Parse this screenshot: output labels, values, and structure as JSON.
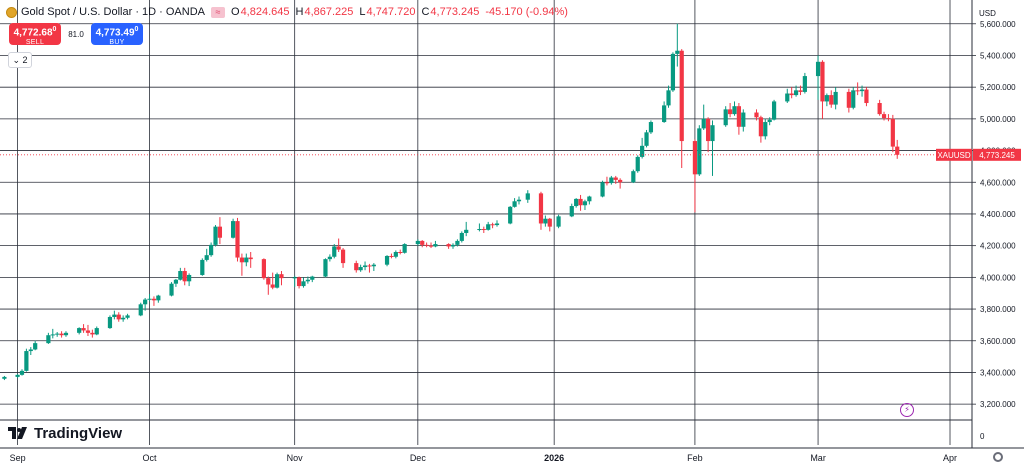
{
  "header": {
    "symbol_title": "Gold Spot / U.S. Dollar · 1D · OANDA",
    "open_label": "O",
    "open": "4,824.645",
    "high_label": "H",
    "high": "4,867.225",
    "low_label": "L",
    "low": "4,747.720",
    "close_label": "C",
    "close": "4,773.245",
    "change": "-45.170 (-0.94%)",
    "flag_icon": "market-closed-icon"
  },
  "trade": {
    "sell_price": "4,772.68",
    "sell_sup": "0",
    "sell_label": "SELL",
    "spread": "81.0",
    "buy_price": "4,773.49",
    "buy_sup": "0",
    "buy_label": "BUY"
  },
  "indicator_toggle": "2",
  "brand": "TradingView",
  "colors": {
    "up": "#089981",
    "down": "#f23645",
    "accent": "#2962ff",
    "event": "#9c27b0"
  },
  "chart_data": {
    "type": "candlestick",
    "symbol": "XAUUSD",
    "last_price": "4,773.245",
    "currency_label": "USD",
    "y_ticks": [
      5600,
      5400,
      5200,
      5000,
      4800,
      4600,
      4400,
      4200,
      4000,
      3800,
      3600,
      3400,
      3200
    ],
    "y_tick_labels": [
      "5,600.000",
      "5,400.000",
      "5,200.000",
      "5,000.000",
      "4,800.000",
      "4,600.000",
      "4,400.000",
      "4,200.000",
      "4,000.000",
      "3,800.000",
      "3,600.000",
      "3,400.000",
      "3,200.000"
    ],
    "ylim": [
      3100,
      5750
    ],
    "volume_axis_label": "0",
    "x_labels": [
      {
        "label": "Sep",
        "date": "2025-09-01"
      },
      {
        "label": "Oct",
        "date": "2025-10-01"
      },
      {
        "label": "Nov",
        "date": "2025-11-03"
      },
      {
        "label": "Dec",
        "date": "2025-12-01"
      },
      {
        "label": "2026",
        "date": "2026-01-01"
      },
      {
        "label": "Feb",
        "date": "2026-02-02"
      },
      {
        "label": "Mar",
        "date": "2026-03-02"
      },
      {
        "label": "Apr",
        "date": "2026-04-01"
      }
    ],
    "xlim": [
      "2025-08-28",
      "2026-04-06"
    ],
    "candles": [
      {
        "date": "2025-08-29",
        "o": 3360,
        "h": 3378,
        "l": 3352,
        "c": 3372
      },
      {
        "date": "2025-09-01",
        "o": 3372,
        "h": 3390,
        "l": 3365,
        "c": 3385
      },
      {
        "date": "2025-09-02",
        "o": 3385,
        "h": 3420,
        "l": 3380,
        "c": 3410
      },
      {
        "date": "2025-09-03",
        "o": 3410,
        "h": 3550,
        "l": 3405,
        "c": 3535
      },
      {
        "date": "2025-09-04",
        "o": 3535,
        "h": 3560,
        "l": 3510,
        "c": 3545
      },
      {
        "date": "2025-09-05",
        "o": 3545,
        "h": 3600,
        "l": 3540,
        "c": 3585
      },
      {
        "date": "2025-09-08",
        "o": 3585,
        "h": 3650,
        "l": 3580,
        "c": 3635
      },
      {
        "date": "2025-09-09",
        "o": 3635,
        "h": 3675,
        "l": 3615,
        "c": 3640
      },
      {
        "date": "2025-09-10",
        "o": 3640,
        "h": 3655,
        "l": 3625,
        "c": 3645
      },
      {
        "date": "2025-09-11",
        "o": 3645,
        "h": 3660,
        "l": 3620,
        "c": 3635
      },
      {
        "date": "2025-09-12",
        "o": 3635,
        "h": 3660,
        "l": 3625,
        "c": 3650
      },
      {
        "date": "2025-09-15",
        "o": 3650,
        "h": 3685,
        "l": 3640,
        "c": 3680
      },
      {
        "date": "2025-09-16",
        "o": 3680,
        "h": 3705,
        "l": 3650,
        "c": 3665
      },
      {
        "date": "2025-09-17",
        "o": 3665,
        "h": 3700,
        "l": 3630,
        "c": 3650
      },
      {
        "date": "2025-09-18",
        "o": 3650,
        "h": 3670,
        "l": 3620,
        "c": 3640
      },
      {
        "date": "2025-09-19",
        "o": 3640,
        "h": 3690,
        "l": 3635,
        "c": 3680
      },
      {
        "date": "2025-09-22",
        "o": 3680,
        "h": 3760,
        "l": 3675,
        "c": 3750
      },
      {
        "date": "2025-09-23",
        "o": 3750,
        "h": 3790,
        "l": 3735,
        "c": 3765
      },
      {
        "date": "2025-09-24",
        "o": 3765,
        "h": 3780,
        "l": 3720,
        "c": 3735
      },
      {
        "date": "2025-09-25",
        "o": 3735,
        "h": 3760,
        "l": 3720,
        "c": 3745
      },
      {
        "date": "2025-09-26",
        "o": 3745,
        "h": 3770,
        "l": 3735,
        "c": 3760
      },
      {
        "date": "2025-09-29",
        "o": 3760,
        "h": 3840,
        "l": 3755,
        "c": 3830
      },
      {
        "date": "2025-09-30",
        "o": 3830,
        "h": 3870,
        "l": 3790,
        "c": 3860
      },
      {
        "date": "2025-10-01",
        "o": 3860,
        "h": 3895,
        "l": 3850,
        "c": 3865
      },
      {
        "date": "2025-10-02",
        "o": 3865,
        "h": 3880,
        "l": 3820,
        "c": 3855
      },
      {
        "date": "2025-10-03",
        "o": 3855,
        "h": 3890,
        "l": 3840,
        "c": 3885
      },
      {
        "date": "2025-10-06",
        "o": 3885,
        "h": 3970,
        "l": 3880,
        "c": 3960
      },
      {
        "date": "2025-10-07",
        "o": 3960,
        "h": 3990,
        "l": 3940,
        "c": 3985
      },
      {
        "date": "2025-10-08",
        "o": 3985,
        "h": 4060,
        "l": 3980,
        "c": 4040
      },
      {
        "date": "2025-10-09",
        "o": 4040,
        "h": 4060,
        "l": 3950,
        "c": 3975
      },
      {
        "date": "2025-10-10",
        "o": 3975,
        "h": 4025,
        "l": 3945,
        "c": 4015
      },
      {
        "date": "2025-10-13",
        "o": 4015,
        "h": 4120,
        "l": 4010,
        "c": 4110
      },
      {
        "date": "2025-10-14",
        "o": 4110,
        "h": 4180,
        "l": 4100,
        "c": 4140
      },
      {
        "date": "2025-10-15",
        "o": 4140,
        "h": 4220,
        "l": 4130,
        "c": 4205
      },
      {
        "date": "2025-10-16",
        "o": 4205,
        "h": 4330,
        "l": 4195,
        "c": 4320
      },
      {
        "date": "2025-10-17",
        "o": 4320,
        "h": 4380,
        "l": 4210,
        "c": 4250
      },
      {
        "date": "2025-10-20",
        "o": 4250,
        "h": 4370,
        "l": 4245,
        "c": 4355
      },
      {
        "date": "2025-10-21",
        "o": 4355,
        "h": 4375,
        "l": 4100,
        "c": 4125
      },
      {
        "date": "2025-10-22",
        "o": 4125,
        "h": 4150,
        "l": 4010,
        "c": 4095
      },
      {
        "date": "2025-10-23",
        "o": 4095,
        "h": 4150,
        "l": 4070,
        "c": 4125
      },
      {
        "date": "2025-10-24",
        "o": 4125,
        "h": 4160,
        "l": 4060,
        "c": 4115
      },
      {
        "date": "2025-10-27",
        "o": 4115,
        "h": 4120,
        "l": 3985,
        "c": 3995
      },
      {
        "date": "2025-10-28",
        "o": 3995,
        "h": 4005,
        "l": 3890,
        "c": 3955
      },
      {
        "date": "2025-10-29",
        "o": 3955,
        "h": 4030,
        "l": 3925,
        "c": 3935
      },
      {
        "date": "2025-10-30",
        "o": 3935,
        "h": 4030,
        "l": 3930,
        "c": 4020
      },
      {
        "date": "2025-10-31",
        "o": 4020,
        "h": 4040,
        "l": 3950,
        "c": 3995
      },
      {
        "date": "2025-11-03",
        "o": 3995,
        "h": 4010,
        "l": 3940,
        "c": 4000
      },
      {
        "date": "2025-11-04",
        "o": 4000,
        "h": 4005,
        "l": 3930,
        "c": 3945
      },
      {
        "date": "2025-11-05",
        "o": 3945,
        "h": 4000,
        "l": 3935,
        "c": 3975
      },
      {
        "date": "2025-11-06",
        "o": 3975,
        "h": 4005,
        "l": 3960,
        "c": 3985
      },
      {
        "date": "2025-11-07",
        "o": 3985,
        "h": 4010,
        "l": 3970,
        "c": 4005
      },
      {
        "date": "2025-11-10",
        "o": 4005,
        "h": 4120,
        "l": 4000,
        "c": 4115
      },
      {
        "date": "2025-11-11",
        "o": 4115,
        "h": 4145,
        "l": 4100,
        "c": 4130
      },
      {
        "date": "2025-11-12",
        "o": 4130,
        "h": 4210,
        "l": 4120,
        "c": 4195
      },
      {
        "date": "2025-11-13",
        "o": 4195,
        "h": 4245,
        "l": 4160,
        "c": 4175
      },
      {
        "date": "2025-11-14",
        "o": 4175,
        "h": 4185,
        "l": 4060,
        "c": 4090
      },
      {
        "date": "2025-11-17",
        "o": 4090,
        "h": 4105,
        "l": 4030,
        "c": 4045
      },
      {
        "date": "2025-11-18",
        "o": 4045,
        "h": 4080,
        "l": 4035,
        "c": 4065
      },
      {
        "date": "2025-11-19",
        "o": 4065,
        "h": 4100,
        "l": 4045,
        "c": 4075
      },
      {
        "date": "2025-11-20",
        "o": 4075,
        "h": 4085,
        "l": 4030,
        "c": 4070
      },
      {
        "date": "2025-11-21",
        "o": 4070,
        "h": 4090,
        "l": 4040,
        "c": 4080
      },
      {
        "date": "2025-11-24",
        "o": 4080,
        "h": 4140,
        "l": 4070,
        "c": 4135
      },
      {
        "date": "2025-11-25",
        "o": 4135,
        "h": 4150,
        "l": 4120,
        "c": 4130
      },
      {
        "date": "2025-11-26",
        "o": 4130,
        "h": 4170,
        "l": 4120,
        "c": 4160
      },
      {
        "date": "2025-11-27",
        "o": 4160,
        "h": 4175,
        "l": 4145,
        "c": 4155
      },
      {
        "date": "2025-11-28",
        "o": 4155,
        "h": 4215,
        "l": 4150,
        "c": 4210
      },
      {
        "date": "2025-12-01",
        "o": 4210,
        "h": 4240,
        "l": 4200,
        "c": 4230
      },
      {
        "date": "2025-12-02",
        "o": 4230,
        "h": 4235,
        "l": 4190,
        "c": 4205
      },
      {
        "date": "2025-12-03",
        "o": 4205,
        "h": 4220,
        "l": 4190,
        "c": 4200
      },
      {
        "date": "2025-12-04",
        "o": 4200,
        "h": 4220,
        "l": 4185,
        "c": 4195
      },
      {
        "date": "2025-12-05",
        "o": 4195,
        "h": 4230,
        "l": 4190,
        "c": 4210
      },
      {
        "date": "2025-12-08",
        "o": 4210,
        "h": 4215,
        "l": 4180,
        "c": 4195
      },
      {
        "date": "2025-12-09",
        "o": 4195,
        "h": 4215,
        "l": 4180,
        "c": 4205
      },
      {
        "date": "2025-12-10",
        "o": 4205,
        "h": 4240,
        "l": 4195,
        "c": 4230
      },
      {
        "date": "2025-12-11",
        "o": 4230,
        "h": 4290,
        "l": 4220,
        "c": 4280
      },
      {
        "date": "2025-12-12",
        "o": 4280,
        "h": 4350,
        "l": 4260,
        "c": 4300
      },
      {
        "date": "2025-12-15",
        "o": 4300,
        "h": 4340,
        "l": 4290,
        "c": 4305
      },
      {
        "date": "2025-12-16",
        "o": 4305,
        "h": 4320,
        "l": 4280,
        "c": 4300
      },
      {
        "date": "2025-12-17",
        "o": 4300,
        "h": 4350,
        "l": 4295,
        "c": 4335
      },
      {
        "date": "2025-12-18",
        "o": 4335,
        "h": 4345,
        "l": 4310,
        "c": 4330
      },
      {
        "date": "2025-12-19",
        "o": 4330,
        "h": 4360,
        "l": 4320,
        "c": 4340
      },
      {
        "date": "2025-12-22",
        "o": 4340,
        "h": 4450,
        "l": 4335,
        "c": 4445
      },
      {
        "date": "2025-12-23",
        "o": 4445,
        "h": 4500,
        "l": 4440,
        "c": 4480
      },
      {
        "date": "2025-12-24",
        "o": 4480,
        "h": 4510,
        "l": 4460,
        "c": 4490
      },
      {
        "date": "2025-12-26",
        "o": 4490,
        "h": 4550,
        "l": 4470,
        "c": 4530
      },
      {
        "date": "2025-12-29",
        "o": 4530,
        "h": 4540,
        "l": 4300,
        "c": 4340
      },
      {
        "date": "2025-12-30",
        "o": 4340,
        "h": 4390,
        "l": 4320,
        "c": 4370
      },
      {
        "date": "2025-12-31",
        "o": 4370,
        "h": 4375,
        "l": 4290,
        "c": 4320
      },
      {
        "date": "2026-01-02",
        "o": 4320,
        "h": 4395,
        "l": 4310,
        "c": 4385
      },
      {
        "date": "2026-01-05",
        "o": 4385,
        "h": 4465,
        "l": 4380,
        "c": 4450
      },
      {
        "date": "2026-01-06",
        "o": 4450,
        "h": 4500,
        "l": 4440,
        "c": 4495
      },
      {
        "date": "2026-01-07",
        "o": 4495,
        "h": 4520,
        "l": 4420,
        "c": 4455
      },
      {
        "date": "2026-01-08",
        "o": 4455,
        "h": 4490,
        "l": 4425,
        "c": 4480
      },
      {
        "date": "2026-01-09",
        "o": 4480,
        "h": 4515,
        "l": 4460,
        "c": 4510
      },
      {
        "date": "2026-01-12",
        "o": 4510,
        "h": 4610,
        "l": 4505,
        "c": 4600
      },
      {
        "date": "2026-01-13",
        "o": 4600,
        "h": 4635,
        "l": 4580,
        "c": 4595
      },
      {
        "date": "2026-01-14",
        "o": 4595,
        "h": 4640,
        "l": 4585,
        "c": 4630
      },
      {
        "date": "2026-01-15",
        "o": 4630,
        "h": 4640,
        "l": 4590,
        "c": 4615
      },
      {
        "date": "2026-01-16",
        "o": 4615,
        "h": 4625,
        "l": 4560,
        "c": 4600
      },
      {
        "date": "2026-01-19",
        "o": 4600,
        "h": 4680,
        "l": 4595,
        "c": 4670
      },
      {
        "date": "2026-01-20",
        "o": 4670,
        "h": 4770,
        "l": 4660,
        "c": 4760
      },
      {
        "date": "2026-01-21",
        "o": 4760,
        "h": 4880,
        "l": 4750,
        "c": 4830
      },
      {
        "date": "2026-01-22",
        "o": 4830,
        "h": 4930,
        "l": 4820,
        "c": 4915
      },
      {
        "date": "2026-01-23",
        "o": 4915,
        "h": 4990,
        "l": 4905,
        "c": 4980
      },
      {
        "date": "2026-01-26",
        "o": 4980,
        "h": 5110,
        "l": 4975,
        "c": 5085
      },
      {
        "date": "2026-01-27",
        "o": 5085,
        "h": 5210,
        "l": 5070,
        "c": 5180
      },
      {
        "date": "2026-01-28",
        "o": 5180,
        "h": 5420,
        "l": 5170,
        "c": 5410
      },
      {
        "date": "2026-01-29",
        "o": 5410,
        "h": 5600,
        "l": 5330,
        "c": 5430
      },
      {
        "date": "2026-01-30",
        "o": 5430,
        "h": 5440,
        "l": 4690,
        "c": 4860
      },
      {
        "date": "2026-02-02",
        "o": 4860,
        "h": 4870,
        "l": 4410,
        "c": 4650
      },
      {
        "date": "2026-02-03",
        "o": 4650,
        "h": 4960,
        "l": 4640,
        "c": 4940
      },
      {
        "date": "2026-02-04",
        "o": 4940,
        "h": 5090,
        "l": 4930,
        "c": 5000
      },
      {
        "date": "2026-02-05",
        "o": 5000,
        "h": 5010,
        "l": 4790,
        "c": 4860
      },
      {
        "date": "2026-02-06",
        "o": 4860,
        "h": 4990,
        "l": 4640,
        "c": 4960
      },
      {
        "date": "2026-02-09",
        "o": 4960,
        "h": 5080,
        "l": 4950,
        "c": 5060
      },
      {
        "date": "2026-02-10",
        "o": 5060,
        "h": 5100,
        "l": 5010,
        "c": 5030
      },
      {
        "date": "2026-02-11",
        "o": 5030,
        "h": 5110,
        "l": 5020,
        "c": 5080
      },
      {
        "date": "2026-02-12",
        "o": 5080,
        "h": 5100,
        "l": 4900,
        "c": 4950
      },
      {
        "date": "2026-02-13",
        "o": 4950,
        "h": 5060,
        "l": 4920,
        "c": 5040
      },
      {
        "date": "2026-02-16",
        "o": 5040,
        "h": 5060,
        "l": 4990,
        "c": 5010
      },
      {
        "date": "2026-02-17",
        "o": 5010,
        "h": 5020,
        "l": 4850,
        "c": 4890
      },
      {
        "date": "2026-02-18",
        "o": 4890,
        "h": 5000,
        "l": 4870,
        "c": 4980
      },
      {
        "date": "2026-02-19",
        "o": 4980,
        "h": 5010,
        "l": 4960,
        "c": 4995
      },
      {
        "date": "2026-02-20",
        "o": 4995,
        "h": 5120,
        "l": 4990,
        "c": 5110
      },
      {
        "date": "2026-02-23",
        "o": 5110,
        "h": 5190,
        "l": 5100,
        "c": 5160
      },
      {
        "date": "2026-02-24",
        "o": 5160,
        "h": 5200,
        "l": 5130,
        "c": 5150
      },
      {
        "date": "2026-02-25",
        "o": 5150,
        "h": 5210,
        "l": 5140,
        "c": 5180
      },
      {
        "date": "2026-02-26",
        "o": 5180,
        "h": 5210,
        "l": 5150,
        "c": 5170
      },
      {
        "date": "2026-02-27",
        "o": 5170,
        "h": 5290,
        "l": 5160,
        "c": 5270
      },
      {
        "date": "2026-03-02",
        "o": 5270,
        "h": 5400,
        "l": 5120,
        "c": 5360
      },
      {
        "date": "2026-03-03",
        "o": 5360,
        "h": 5370,
        "l": 5000,
        "c": 5110
      },
      {
        "date": "2026-03-04",
        "o": 5110,
        "h": 5160,
        "l": 5080,
        "c": 5150
      },
      {
        "date": "2026-03-05",
        "o": 5150,
        "h": 5180,
        "l": 5070,
        "c": 5090
      },
      {
        "date": "2026-03-06",
        "o": 5090,
        "h": 5200,
        "l": 5060,
        "c": 5170
      },
      {
        "date": "2026-03-09",
        "o": 5170,
        "h": 5190,
        "l": 5040,
        "c": 5070
      },
      {
        "date": "2026-03-10",
        "o": 5070,
        "h": 5200,
        "l": 5060,
        "c": 5180
      },
      {
        "date": "2026-03-11",
        "o": 5180,
        "h": 5230,
        "l": 5150,
        "c": 5175
      },
      {
        "date": "2026-03-12",
        "o": 5175,
        "h": 5210,
        "l": 5140,
        "c": 5185
      },
      {
        "date": "2026-03-13",
        "o": 5185,
        "h": 5200,
        "l": 5080,
        "c": 5100
      },
      {
        "date": "2026-03-16",
        "o": 5100,
        "h": 5120,
        "l": 5020,
        "c": 5030
      },
      {
        "date": "2026-03-17",
        "o": 5030,
        "h": 5045,
        "l": 4990,
        "c": 5005
      },
      {
        "date": "2026-03-18",
        "o": 5005,
        "h": 5030,
        "l": 4985,
        "c": 5000
      },
      {
        "date": "2026-03-19",
        "o": 5000,
        "h": 5025,
        "l": 4790,
        "c": 4825
      },
      {
        "date": "2026-03-20",
        "o": 4825,
        "h": 4867.225,
        "l": 4747.72,
        "c": 4773.245
      }
    ]
  }
}
